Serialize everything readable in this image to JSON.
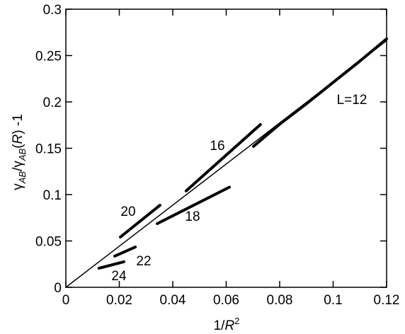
{
  "chart_data": {
    "type": "line",
    "xlabel": [
      "1/",
      "R",
      "2"
    ],
    "ylabel": [
      "γ",
      "AB",
      "/γ",
      "AB",
      "(",
      "R",
      ") -1"
    ],
    "xlim": [
      0,
      0.12
    ],
    "ylim": [
      0,
      0.3
    ],
    "xticks": [
      0,
      0.02,
      0.04,
      0.06,
      0.08,
      0.1,
      0.12
    ],
    "yticks": [
      0,
      0.05,
      0.1,
      0.15,
      0.2,
      0.25,
      0.3
    ],
    "grid": false,
    "series": [
      {
        "color": "#000000",
        "width": 1.5,
        "x": [
          0,
          0.12
        ],
        "values": [
          0,
          0.266
        ]
      },
      {
        "name": "L=12",
        "color": "#000000",
        "width": 4,
        "x": [
          0.0702,
          0.08,
          0.09,
          0.1,
          0.11,
          0.12
        ],
        "values": [
          0.152,
          0.176,
          0.198,
          0.221,
          0.244,
          0.268
        ]
      },
      {
        "name": "16",
        "color": "#000000",
        "width": 4,
        "x": [
          0.045,
          0.0728
        ],
        "values": [
          0.104,
          0.1756
        ]
      },
      {
        "name": "18",
        "color": "#000000",
        "width": 4,
        "x": [
          0.0342,
          0.0612
        ],
        "values": [
          0.0687,
          0.108
        ]
      },
      {
        "name": "20",
        "color": "#000000",
        "width": 4,
        "x": [
          0.0204,
          0.0352
        ],
        "values": [
          0.0542,
          0.0885
        ]
      },
      {
        "name": "22",
        "color": "#000000",
        "width": 4,
        "x": [
          0.0183,
          0.026
        ],
        "values": [
          0.0336,
          0.0435
        ]
      },
      {
        "name": "24",
        "color": "#000000",
        "width": 4,
        "x": [
          0.0124,
          0.0217
        ],
        "values": [
          0.0206,
          0.0275
        ]
      }
    ]
  }
}
